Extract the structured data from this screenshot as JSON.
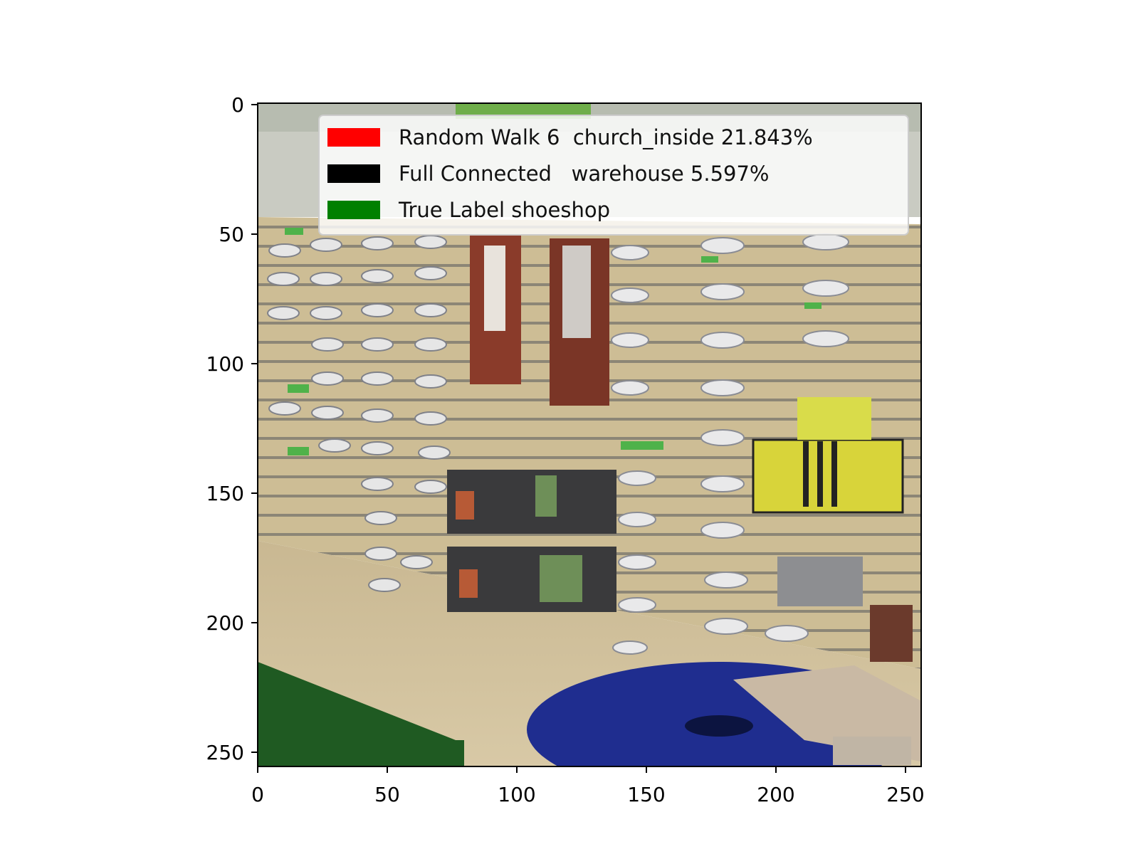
{
  "image": {
    "description_icon": "shoe-store-photo",
    "x_ticks": [
      "0",
      "50",
      "100",
      "150",
      "200",
      "250"
    ],
    "y_ticks": [
      "0",
      "50",
      "100",
      "150",
      "200",
      "250"
    ],
    "xlim": [
      0,
      256
    ],
    "ylim": [
      0,
      256
    ]
  },
  "legend": {
    "items": [
      {
        "label": "Random Walk 6  church_inside 21.843%",
        "color": "#ff0000"
      },
      {
        "label": "Full Connected   warehouse 5.597%",
        "color": "#000000"
      },
      {
        "label": "True Label shoeshop",
        "color": "#008000"
      }
    ]
  }
}
